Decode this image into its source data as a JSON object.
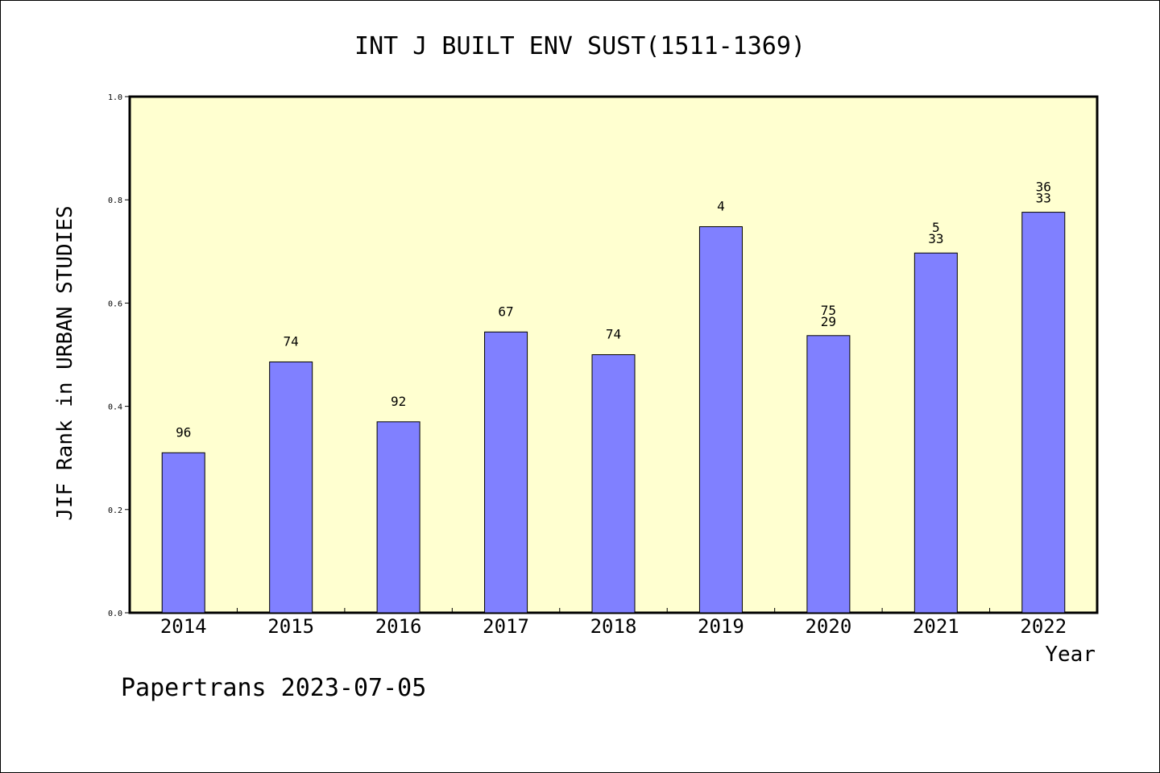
{
  "chart_data": {
    "type": "bar",
    "title": "INT J BUILT ENV SUST(1511-1369)",
    "xlabel": "Year",
    "ylabel": "JIF Rank in URBAN STUDIES",
    "categories": [
      "2014",
      "2015",
      "2016",
      "2017",
      "2018",
      "2019",
      "2020",
      "2021",
      "2022"
    ],
    "values": [
      0.31,
      0.486,
      0.37,
      0.544,
      0.5,
      0.748,
      0.537,
      0.697,
      0.776
    ],
    "data_labels": [
      [
        "96"
      ],
      [
        "74"
      ],
      [
        "92"
      ],
      [
        "67"
      ],
      [
        "74"
      ],
      [
        "4"
      ],
      [
        "75",
        "29"
      ],
      [
        "5",
        "33"
      ],
      [
        "36",
        "33"
      ]
    ],
    "ylim": [
      0.0,
      1.0
    ],
    "yticks": [
      "0.0",
      "0.2",
      "0.4",
      "0.6",
      "0.8",
      "1.0"
    ],
    "grid": false,
    "legend": "none",
    "colors": {
      "bar": "#8080ff",
      "plot_background": "#ffffd0",
      "outline": "#000000"
    }
  },
  "footer": {
    "text": "Papertrans 2023-07-05"
  }
}
